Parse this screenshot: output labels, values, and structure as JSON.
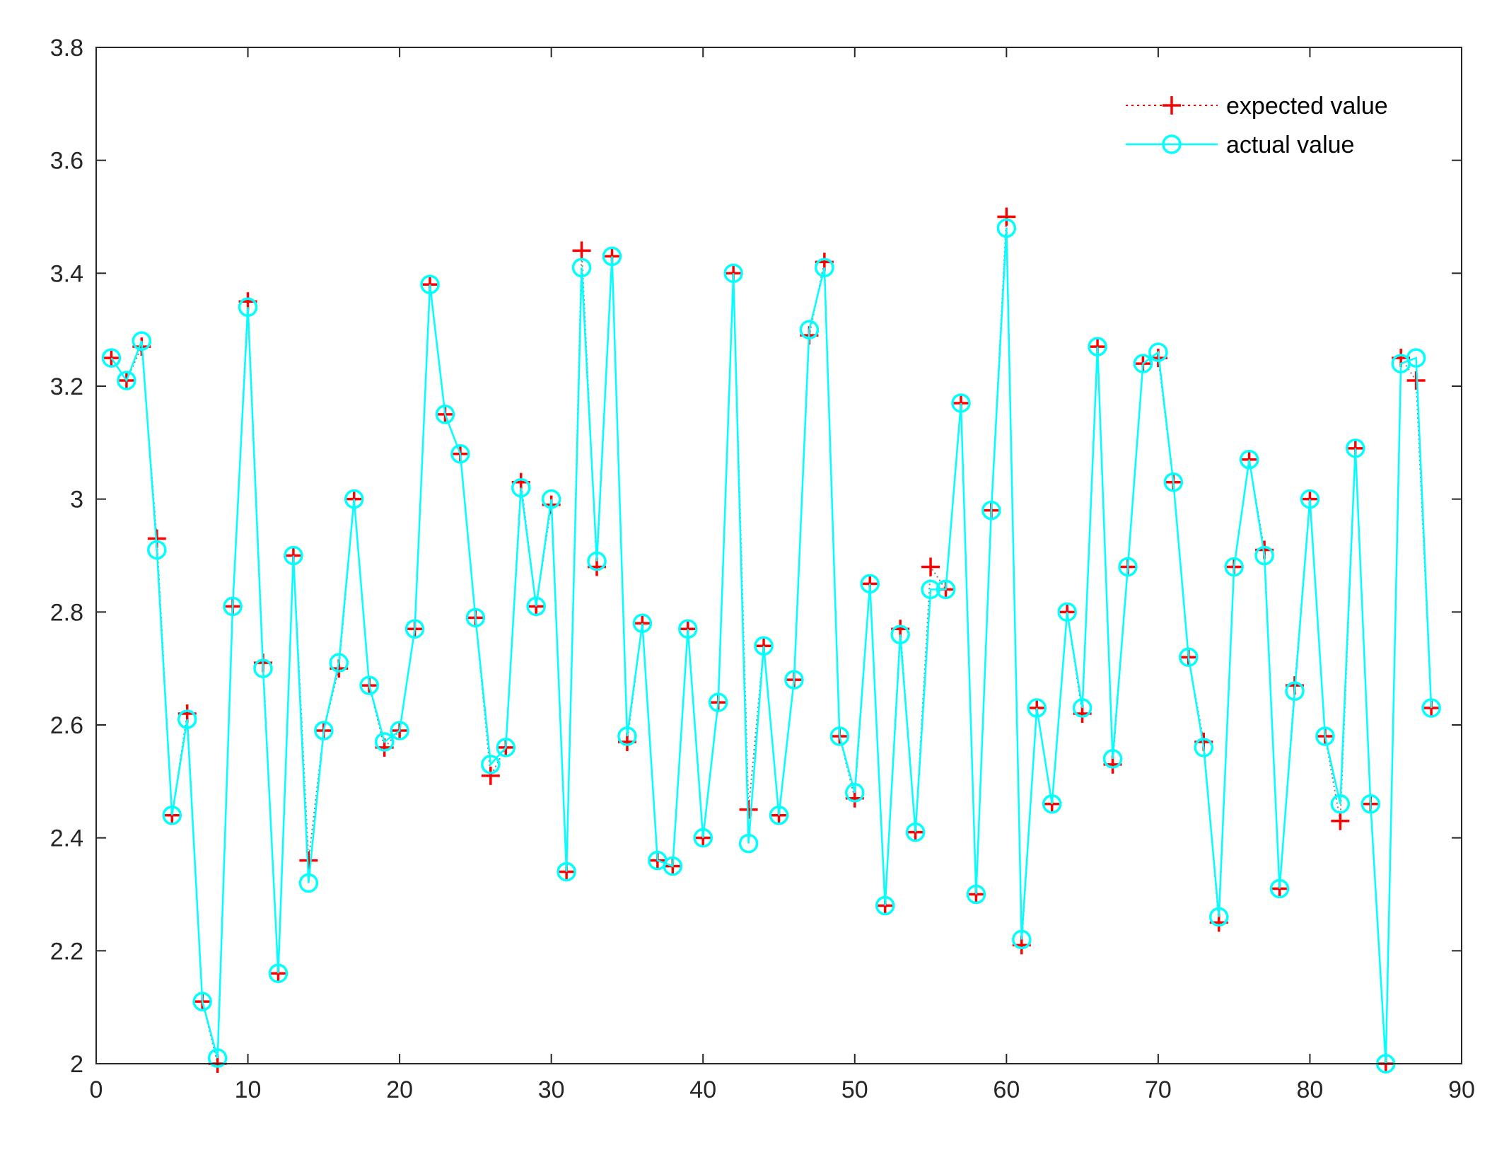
{
  "chart_data": {
    "type": "line",
    "title": "",
    "xlabel": "",
    "ylabel": "",
    "xlim": [
      0,
      90
    ],
    "ylim": [
      2,
      3.8
    ],
    "xticks": [
      0,
      10,
      20,
      30,
      40,
      50,
      60,
      70,
      80,
      90
    ],
    "yticks": [
      2,
      2.2,
      2.4,
      2.6,
      2.8,
      3,
      3.2,
      3.4,
      3.6,
      3.8
    ],
    "xtick_labels": [
      "0",
      "10",
      "20",
      "30",
      "40",
      "50",
      "60",
      "70",
      "80",
      "90"
    ],
    "ytick_labels": [
      "2",
      "2.2",
      "2.4",
      "2.6",
      "2.8",
      "3",
      "3.2",
      "3.4",
      "3.6",
      "3.8"
    ],
    "grid": false,
    "legend_position": "top-right",
    "x": [
      1,
      2,
      3,
      4,
      5,
      6,
      7,
      8,
      9,
      10,
      11,
      12,
      13,
      14,
      15,
      16,
      17,
      18,
      19,
      20,
      21,
      22,
      23,
      24,
      25,
      26,
      27,
      28,
      29,
      30,
      31,
      32,
      33,
      34,
      35,
      36,
      37,
      38,
      39,
      40,
      41,
      42,
      43,
      44,
      45,
      46,
      47,
      48,
      49,
      50,
      51,
      52,
      53,
      54,
      55,
      56,
      57,
      58,
      59,
      60,
      61,
      62,
      63,
      64,
      65,
      66,
      67,
      68,
      69,
      70,
      71,
      72,
      73,
      74,
      75,
      76,
      77,
      78,
      79,
      80,
      81,
      82,
      83,
      84,
      85,
      86,
      87,
      88
    ],
    "series": [
      {
        "name": "expected value",
        "color": "#ff0000",
        "line_color": "#7f7f7f",
        "line_style": "dotted",
        "marker": "plus",
        "values": [
          3.25,
          3.21,
          3.27,
          2.93,
          2.44,
          2.62,
          2.11,
          2.0,
          2.81,
          3.35,
          2.71,
          2.16,
          2.9,
          2.36,
          2.59,
          2.7,
          3.0,
          2.67,
          2.56,
          2.59,
          2.77,
          3.38,
          3.15,
          3.08,
          2.79,
          2.51,
          2.56,
          3.03,
          2.81,
          2.99,
          2.34,
          3.44,
          2.88,
          3.43,
          2.57,
          2.78,
          2.36,
          2.35,
          2.77,
          2.4,
          2.64,
          3.4,
          2.45,
          2.74,
          2.44,
          2.68,
          3.29,
          3.42,
          2.58,
          2.47,
          2.85,
          2.28,
          2.77,
          2.41,
          2.88,
          2.84,
          3.17,
          2.3,
          2.98,
          3.5,
          2.21,
          2.63,
          2.46,
          2.8,
          2.62,
          3.27,
          2.53,
          2.88,
          3.24,
          3.25,
          3.03,
          2.72,
          2.57,
          2.25,
          2.88,
          3.07,
          2.91,
          2.31,
          2.67,
          3.0,
          2.58,
          2.43,
          3.09,
          2.46,
          2.0,
          3.25,
          3.21,
          2.63
        ]
      },
      {
        "name": "actual value",
        "color": "#00ffff",
        "line_style": "solid",
        "marker": "circle",
        "values": [
          3.25,
          3.21,
          3.28,
          2.91,
          2.44,
          2.61,
          2.11,
          2.01,
          2.81,
          3.34,
          2.7,
          2.16,
          2.9,
          2.32,
          2.59,
          2.71,
          3.0,
          2.67,
          2.57,
          2.59,
          2.77,
          3.38,
          3.15,
          3.08,
          2.79,
          2.53,
          2.56,
          3.02,
          2.81,
          3.0,
          2.34,
          3.41,
          2.89,
          3.43,
          2.58,
          2.78,
          2.36,
          2.35,
          2.77,
          2.4,
          2.64,
          3.4,
          2.39,
          2.74,
          2.44,
          2.68,
          3.3,
          3.41,
          2.58,
          2.48,
          2.85,
          2.28,
          2.76,
          2.41,
          2.84,
          2.84,
          3.17,
          2.3,
          2.98,
          3.48,
          2.22,
          2.63,
          2.46,
          2.8,
          2.63,
          3.27,
          2.54,
          2.88,
          3.24,
          3.26,
          3.03,
          2.72,
          2.56,
          2.26,
          2.88,
          3.07,
          2.9,
          2.31,
          2.66,
          3.0,
          2.58,
          2.46,
          3.09,
          2.46,
          2.0,
          3.24,
          3.25,
          2.63
        ]
      }
    ]
  }
}
